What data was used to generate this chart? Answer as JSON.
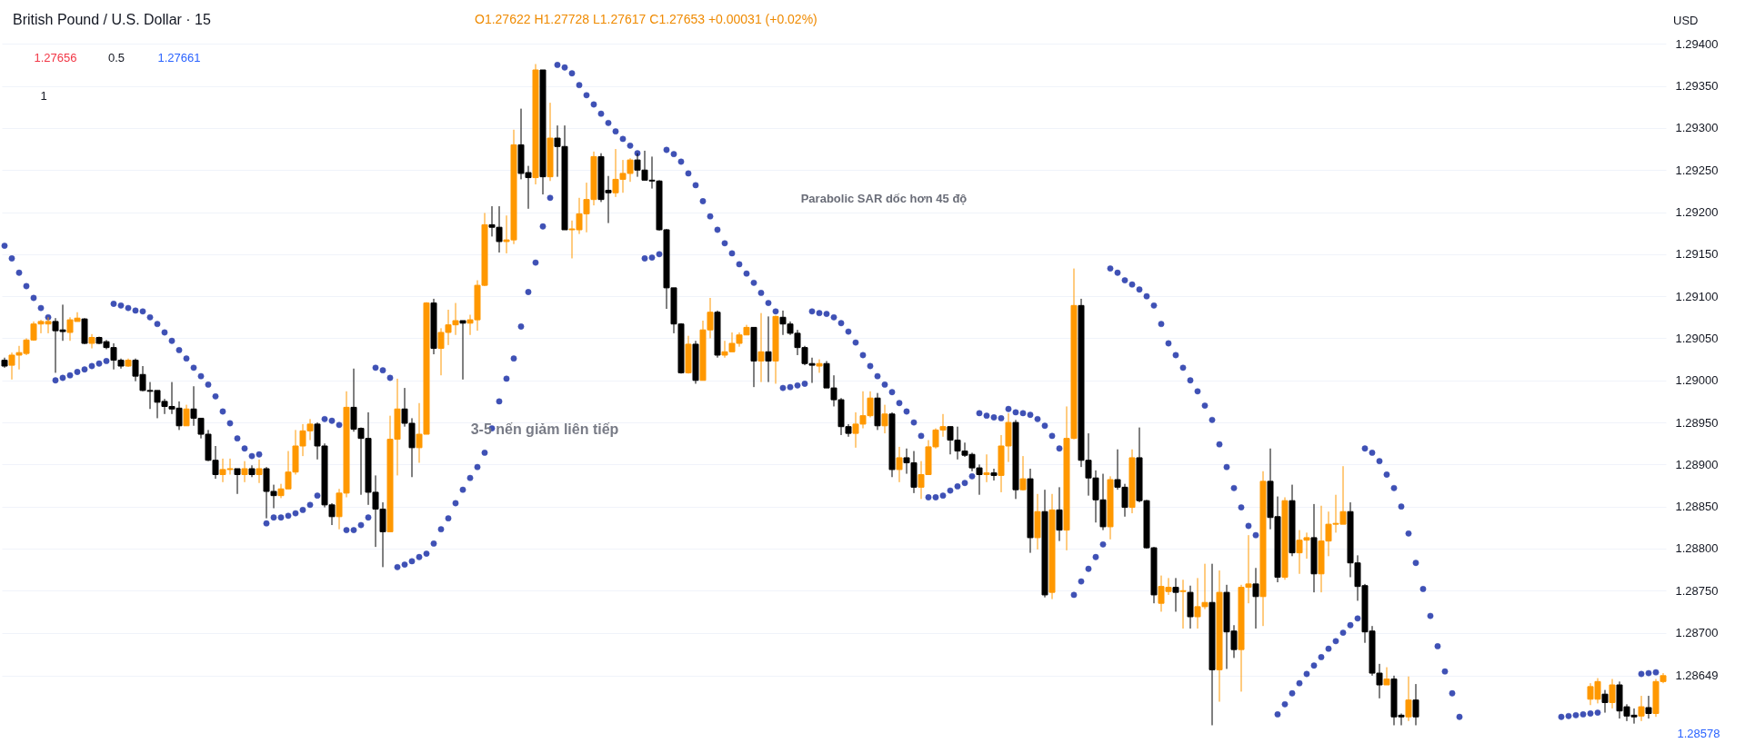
{
  "chart_data": {
    "type": "candlestick",
    "title": "British Pound / U.S. Dollar · 15",
    "subtitle": "O1.27622 H1.27728 L1.27617 C1.27653 +0.00031 (+0.02%)",
    "annotations": [
      "1.27656",
      "0.5",
      "1.27661",
      "1",
      "USD",
      "Parabolic SAR dốc hơn 45 độ",
      "3-5 nến giảm liên tiếp",
      "1.28578"
    ],
    "colors": [
      "#000000",
      "#ff9800",
      "#ff9800",
      "#ff9800",
      "#ff9800",
      "#ff9800",
      "#ff9800",
      "#000000",
      "#000000",
      "#ff9800",
      "#ff9800",
      "#000000",
      "#ff9800",
      "#000000",
      "#000000",
      "#000000",
      "#000000",
      "#ff9800",
      "#000000",
      "#000000",
      "#000000",
      "#000000",
      "#000000",
      "#000000",
      "#000000",
      "#ff9800",
      "#000000",
      "#000000",
      "#000000",
      "#000000",
      "#ff9800",
      "#ff9800",
      "#000000",
      "#ff9800",
      "#000000",
      "#ff9800",
      "#000000",
      "#000000",
      "#ff9800",
      "#ff9800",
      "#ff9800",
      "#ff9800",
      "#ff9800",
      "#000000",
      "#000000",
      "#000000",
      "#ff9800",
      "#ff9800",
      "#000000",
      "#000000",
      "#000000",
      "#000000",
      "#000000",
      "#ff9800",
      "#ff9800",
      "#000000",
      "#000000",
      "#ff9800",
      "#ff9800",
      "#000000",
      "#ff9800",
      "#ff9800",
      "#ff9800",
      "#000000",
      "#ff9800",
      "#ff9800",
      "#ff9800",
      "#000000",
      "#000000",
      "#ff9800",
      "#ff9800",
      "#000000",
      "#000000",
      "#ff9800",
      "#000000",
      "#ff9800",
      "#000000",
      "#000000",
      "#ff9800",
      "#ff9800",
      "#ff9800",
      "#ff9800",
      "#000000",
      "#000000",
      "#ff9800",
      "#ff9800",
      "#ff9800",
      "#000000",
      "#000000",
      "#000000",
      "#000000",
      "#000000",
      "#000000",
      "#000000",
      "#ff9800",
      "#000000",
      "#ff9800",
      "#ff9800",
      "#000000",
      "#ff9800",
      "#ff9800",
      "#ff9800",
      "#ff9800",
      "#000000",
      "#ff9800",
      "#000000",
      "#ff9800",
      "#000000",
      "#000000",
      "#000000",
      "#000000",
      "#000000",
      "#ff9800",
      "#000000",
      "#000000",
      "#000000",
      "#000000",
      "#ff9800",
      "#ff9800",
      "#ff9800",
      "#000000",
      "#ff9800",
      "#000000",
      "#ff9800",
      "#000000",
      "#000000",
      "#ff9800",
      "#ff9800",
      "#ff9800",
      "#ff9800",
      "#000000",
      "#000000",
      "#000000",
      "#000000",
      "#000000",
      "#ff9800",
      "#000000",
      "#ff9800",
      "#ff9800",
      "#000000",
      "#ff9800",
      "#000000",
      "#ff9800",
      "#000000",
      "#ff9800",
      "#000000",
      "#ff9800",
      "#ff9800",
      "#000000",
      "#000000",
      "#000000",
      "#000000",
      "#ff9800",
      "#000000",
      "#000000",
      "#ff9800",
      "#000000",
      "#000000",
      "#000000",
      "#ff9800",
      "#ff9800",
      "#000000",
      "#ff9800",
      "#000000",
      "#ff9800",
      "#ff9800",
      "#000000",
      "#ff9800",
      "#000000",
      "#000000",
      "#ff9800",
      "#ff9800",
      "#000000",
      "#ff9800",
      "#000000",
      "#000000",
      "#ff9800",
      "#000000",
      "#ff9800",
      "#ff9800",
      "#000000",
      "#ff9800",
      "#ff9800",
      "#ff9800",
      "#ff9800",
      "#000000",
      "#000000",
      "#000000",
      "#000000",
      "#000000",
      "#ff9800",
      "#000000",
      "#000000",
      "#ff9800",
      "#000000",
      null,
      null,
      null,
      null,
      null,
      null,
      null,
      null,
      null,
      null,
      null,
      null,
      null,
      null,
      null,
      null,
      null,
      null,
      null,
      null,
      null,
      null,
      null,
      "#ff9800",
      "#ff9800",
      "#000000",
      "#ff9800",
      "#000000",
      "#000000",
      "#000000",
      "#ff9800",
      "#000000",
      "#ff9800",
      "#ff9800"
    ],
    "tick_labels": "y",
    "categories": [
      null,
      null,
      null,
      null,
      null,
      null,
      null,
      null,
      null,
      null,
      null,
      null,
      null,
      null,
      null,
      null,
      null,
      null,
      null,
      null,
      null,
      null,
      null,
      null,
      null,
      null,
      null,
      null,
      null,
      null,
      null,
      null,
      null,
      null,
      null,
      null,
      null,
      null,
      null,
      null,
      null,
      null,
      null,
      null,
      null,
      null,
      null,
      null,
      null,
      null,
      null,
      null,
      null,
      null,
      null,
      null,
      null,
      null,
      null,
      null,
      null,
      null,
      null,
      null,
      null,
      null,
      null,
      null,
      null,
      null,
      null,
      null,
      null,
      null,
      null,
      null,
      null,
      null,
      null,
      null,
      null,
      null,
      null,
      null,
      null,
      null,
      null,
      null,
      null,
      null,
      null,
      null,
      null,
      null,
      null,
      null,
      null,
      null,
      null,
      null,
      null,
      null,
      null,
      null,
      null,
      null,
      null,
      null,
      null,
      null,
      null,
      null,
      null,
      null,
      null,
      null,
      null,
      null,
      null,
      null,
      null,
      null,
      null,
      null,
      null,
      null,
      null,
      null,
      null,
      null,
      null,
      null,
      null,
      null,
      null,
      null,
      null,
      null,
      null,
      null,
      null,
      null,
      null,
      null,
      null,
      null,
      null,
      null,
      null,
      null,
      null,
      null,
      null,
      null,
      null,
      null,
      null,
      null,
      null,
      null,
      null,
      null,
      null,
      null,
      null,
      null,
      null,
      null,
      null,
      null,
      null,
      null,
      null,
      null,
      null,
      null,
      null,
      null,
      null,
      null,
      null,
      null,
      null,
      null,
      null,
      null,
      null,
      null,
      null,
      null,
      null,
      null,
      null,
      null,
      null,
      null,
      null,
      null,
      null,
      null,
      null,
      null,
      null,
      null,
      null,
      null,
      null,
      null,
      null,
      null,
      null,
      null,
      null,
      null,
      null,
      null,
      null,
      null,
      null,
      null,
      null,
      null,
      null,
      null,
      null,
      null,
      null,
      null,
      null
    ],
    "ohlc": [
      [
        1.29024,
        1.29027,
        1.29015,
        1.29017
      ],
      [
        1.29018,
        1.29033,
        1.29001,
        1.2903
      ],
      [
        1.2903,
        1.29041,
        1.29013,
        1.29033
      ],
      [
        1.29032,
        1.2905,
        1.2903,
        1.29048
      ],
      [
        1.29048,
        1.2907,
        1.29047,
        1.29067
      ],
      [
        1.29067,
        1.29072,
        1.29056,
        1.2907
      ],
      [
        1.29067,
        1.29075,
        1.29056,
        1.2907
      ],
      [
        1.2907,
        1.29074,
        1.29009,
        1.29059
      ],
      [
        1.2906,
        1.2909,
        1.29047,
        1.29058
      ],
      [
        1.29057,
        1.29075,
        1.29047,
        1.29072
      ],
      [
        1.2907,
        1.29081,
        1.2907,
        1.29074
      ],
      [
        1.29073,
        1.29074,
        1.29043,
        1.29044
      ],
      [
        1.29044,
        1.29055,
        1.29038,
        1.29051
      ],
      [
        1.29051,
        1.29052,
        1.29043,
        1.29044
      ],
      [
        1.29046,
        1.29048,
        1.29037,
        1.29039
      ],
      [
        1.29039,
        1.29044,
        1.29013,
        1.29024
      ],
      [
        1.29024,
        1.29026,
        1.29014,
        1.29017
      ],
      [
        1.29017,
        1.29026,
        1.29016,
        1.29024
      ],
      [
        1.29024,
        1.29026,
        1.28999,
        1.29005
      ],
      [
        1.29007,
        1.29017,
        1.28987,
        1.28988
      ],
      [
        1.28988,
        1.28998,
        1.28966,
        1.28987
      ],
      [
        1.28988,
        1.28988,
        1.28955,
        1.28974
      ],
      [
        1.28975,
        1.28978,
        1.2896,
        1.28969
      ],
      [
        1.28969,
        1.28998,
        1.2896,
        1.28966
      ],
      [
        1.28967,
        1.28975,
        1.28941,
        1.28946
      ],
      [
        1.28946,
        1.28971,
        1.28946,
        1.28966
      ],
      [
        1.28966,
        1.28993,
        1.28946,
        1.28955
      ],
      [
        1.28955,
        1.28955,
        1.28931,
        1.28936
      ],
      [
        1.28936,
        1.28941,
        1.28904,
        1.28905
      ],
      [
        1.28905,
        1.28922,
        1.28883,
        1.28888
      ],
      [
        1.28888,
        1.28907,
        1.28879,
        1.28894
      ],
      [
        1.28894,
        1.28907,
        1.28888,
        1.28895
      ],
      [
        1.28895,
        1.28895,
        1.28865,
        1.28888
      ],
      [
        1.28888,
        1.28904,
        1.28879,
        1.28895
      ],
      [
        1.28895,
        1.28899,
        1.28885,
        1.28888
      ],
      [
        1.28888,
        1.28906,
        1.28878,
        1.28895
      ],
      [
        1.28895,
        1.28897,
        1.28836,
        1.28868
      ],
      [
        1.28868,
        1.28876,
        1.28848,
        1.28863
      ],
      [
        1.28863,
        1.28877,
        1.2886,
        1.28871
      ],
      [
        1.28871,
        1.28916,
        1.28871,
        1.28891
      ],
      [
        1.28891,
        1.28941,
        1.28888,
        1.28922
      ],
      [
        1.28922,
        1.28948,
        1.2891,
        1.2894
      ],
      [
        1.2894,
        1.28954,
        1.28929,
        1.28948
      ],
      [
        1.28948,
        1.2895,
        1.28906,
        1.28922
      ],
      [
        1.28922,
        1.28925,
        1.28849,
        1.28852
      ],
      [
        1.28852,
        1.28854,
        1.28828,
        1.28838
      ],
      [
        1.28838,
        1.28871,
        1.28823,
        1.28866
      ],
      [
        1.28866,
        1.28987,
        1.28861,
        1.28968
      ],
      [
        1.28968,
        1.29014,
        1.28939,
        1.28942
      ],
      [
        1.28943,
        1.28944,
        1.28864,
        1.28931
      ],
      [
        1.28931,
        1.28962,
        1.28852,
        1.28867
      ],
      [
        1.28867,
        1.28887,
        1.28802,
        1.28847
      ],
      [
        1.28847,
        1.28855,
        1.28778,
        1.2882
      ],
      [
        1.2882,
        1.28958,
        1.2882,
        1.2893
      ],
      [
        1.2893,
        1.29002,
        1.28887,
        1.28966
      ],
      [
        1.28966,
        1.28991,
        1.28945,
        1.28949
      ],
      [
        1.28949,
        1.28955,
        1.28885,
        1.2892
      ],
      [
        1.2892,
        1.28973,
        1.28902,
        1.28936
      ],
      [
        1.28936,
        1.29093,
        1.28936,
        1.29092
      ],
      [
        1.29092,
        1.29097,
        1.29031,
        1.29038
      ],
      [
        1.29038,
        1.29062,
        1.29006,
        1.29057
      ],
      [
        1.29057,
        1.29084,
        1.29042,
        1.29066
      ],
      [
        1.29066,
        1.29092,
        1.29054,
        1.29071
      ],
      [
        1.29071,
        1.29071,
        1.29001,
        1.29068
      ],
      [
        1.29068,
        1.29078,
        1.29054,
        1.29072
      ],
      [
        1.29072,
        1.29119,
        1.29059,
        1.29113
      ],
      [
        1.29113,
        1.29199,
        1.29112,
        1.29185
      ],
      [
        1.29185,
        1.29207,
        1.29171,
        1.29182
      ],
      [
        1.29182,
        1.29207,
        1.29152,
        1.29165
      ],
      [
        1.29165,
        1.29196,
        1.29151,
        1.29167
      ],
      [
        1.29167,
        1.29298,
        1.29162,
        1.2928
      ],
      [
        1.2928,
        1.29323,
        1.29239,
        1.29246
      ],
      [
        1.29247,
        1.29255,
        1.29204,
        1.29241
      ],
      [
        1.29241,
        1.29376,
        1.29233,
        1.29369
      ],
      [
        1.29369,
        1.29369,
        1.29221,
        1.29242
      ],
      [
        1.29242,
        1.2933,
        1.29237,
        1.29288
      ],
      [
        1.29288,
        1.29303,
        1.29242,
        1.29278
      ],
      [
        1.29278,
        1.29303,
        1.29179,
        1.29179
      ],
      [
        1.29179,
        1.2919,
        1.29145,
        1.2918
      ],
      [
        1.29179,
        1.29217,
        1.29174,
        1.29198
      ],
      [
        1.29198,
        1.29235,
        1.29176,
        1.29215
      ],
      [
        1.29215,
        1.29272,
        1.29208,
        1.29266
      ],
      [
        1.29266,
        1.2927,
        1.29212,
        1.29215
      ],
      [
        1.29226,
        1.29243,
        1.29187,
        1.29223
      ],
      [
        1.29223,
        1.29275,
        1.29218,
        1.29239
      ],
      [
        1.29239,
        1.29262,
        1.29223,
        1.29246
      ],
      [
        1.29246,
        1.29264,
        1.29236,
        1.29262
      ],
      [
        1.29262,
        1.2927,
        1.29242,
        1.2925
      ],
      [
        1.2925,
        1.29273,
        1.29238,
        1.29238
      ],
      [
        1.29238,
        1.29266,
        1.29228,
        1.29237
      ],
      [
        1.29237,
        1.29238,
        1.29178,
        1.29179
      ],
      [
        1.29179,
        1.2918,
        1.29085,
        1.2911
      ],
      [
        1.2911,
        1.2911,
        1.29056,
        1.29067
      ],
      [
        1.29067,
        1.29068,
        1.29008,
        1.29009
      ],
      [
        1.29009,
        1.29053,
        1.29008,
        1.29043
      ],
      [
        1.29043,
        1.29047,
        1.28996,
        1.29
      ],
      [
        1.29,
        1.29071,
        1.29,
        1.2906
      ],
      [
        1.2906,
        1.29098,
        1.2905,
        1.29081
      ],
      [
        1.29081,
        1.29083,
        1.29027,
        1.2903
      ],
      [
        1.2903,
        1.29047,
        1.29027,
        1.29034
      ],
      [
        1.29034,
        1.29057,
        1.29034,
        1.29044
      ],
      [
        1.29044,
        1.29057,
        1.2904,
        1.29054
      ],
      [
        1.29054,
        1.29066,
        1.29054,
        1.29063
      ],
      [
        1.29063,
        1.29063,
        1.28992,
        1.29023
      ],
      [
        1.29023,
        1.2908,
        1.28998,
        1.29034
      ],
      [
        1.29034,
        1.29076,
        1.28998,
        1.29023
      ],
      [
        1.29023,
        1.29077,
        1.28996,
        1.29076
      ],
      [
        1.29075,
        1.29083,
        1.29054,
        1.29067
      ],
      [
        1.29067,
        1.2907,
        1.29054,
        1.29056
      ],
      [
        1.29056,
        1.2906,
        1.2903,
        1.29039
      ],
      [
        1.29039,
        1.29041,
        1.29018,
        1.2902
      ],
      [
        1.2902,
        1.29027,
        1.28997,
        1.29018
      ],
      [
        1.29017,
        1.29025,
        1.29009,
        1.2902
      ],
      [
        1.2902,
        1.29023,
        1.28991,
        1.28991
      ],
      [
        1.28991,
        1.29006,
        1.28969,
        1.28977
      ],
      [
        1.28977,
        1.28979,
        1.28935,
        1.28945
      ],
      [
        1.28945,
        1.28948,
        1.28933,
        1.28937
      ],
      [
        1.28937,
        1.28962,
        1.2892,
        1.28948
      ],
      [
        1.28948,
        1.28987,
        1.28943,
        1.28958
      ],
      [
        1.28958,
        1.28987,
        1.28956,
        1.28979
      ],
      [
        1.28979,
        1.28985,
        1.28941,
        1.28946
      ],
      [
        1.28946,
        1.28971,
        1.28937,
        1.2896
      ],
      [
        1.2896,
        1.28962,
        1.28885,
        1.28894
      ],
      [
        1.28894,
        1.28921,
        1.28879,
        1.28908
      ],
      [
        1.28908,
        1.28919,
        1.28889,
        1.28902
      ],
      [
        1.28902,
        1.28916,
        1.28866,
        1.28873
      ],
      [
        1.28873,
        1.28904,
        1.28859,
        1.28888
      ],
      [
        1.28888,
        1.28929,
        1.28888,
        1.28921
      ],
      [
        1.28921,
        1.28943,
        1.28919,
        1.28941
      ],
      [
        1.28941,
        1.2896,
        1.28933,
        1.28945
      ],
      [
        1.28945,
        1.28945,
        1.28912,
        1.28929
      ],
      [
        1.28929,
        1.28945,
        1.28906,
        1.28916
      ],
      [
        1.28916,
        1.28926,
        1.28909,
        1.28911
      ],
      [
        1.28912,
        1.28914,
        1.28892,
        1.28896
      ],
      [
        1.28896,
        1.289,
        1.28864,
        1.28888
      ],
      [
        1.28888,
        1.28912,
        1.28879,
        1.2889
      ],
      [
        1.2889,
        1.28895,
        1.28881,
        1.28887
      ],
      [
        1.28887,
        1.28935,
        1.28867,
        1.28922
      ],
      [
        1.28922,
        1.28961,
        1.28903,
        1.2895
      ],
      [
        1.2895,
        1.28953,
        1.28859,
        1.2887
      ],
      [
        1.2887,
        1.2891,
        1.28869,
        1.28883
      ],
      [
        1.28883,
        1.28895,
        1.28795,
        1.28813
      ],
      [
        1.28813,
        1.28865,
        1.28799,
        1.28844
      ],
      [
        1.28844,
        1.2887,
        1.28742,
        1.28745
      ],
      [
        1.28748,
        1.28865,
        1.2874,
        1.28846
      ],
      [
        1.28846,
        1.28873,
        1.28809,
        1.28822
      ],
      [
        1.28822,
        1.28969,
        1.28798,
        1.28931
      ],
      [
        1.28931,
        1.29133,
        1.2893,
        1.29089
      ],
      [
        1.29089,
        1.29097,
        1.28897,
        1.28905
      ],
      [
        1.28905,
        1.28937,
        1.28863,
        1.28884
      ],
      [
        1.28884,
        1.28893,
        1.28831,
        1.28858
      ],
      [
        1.28858,
        1.28889,
        1.28822,
        1.28826
      ],
      [
        1.28826,
        1.28886,
        1.28811,
        1.28882
      ],
      [
        1.28882,
        1.28918,
        1.2887,
        1.28873
      ],
      [
        1.28873,
        1.28877,
        1.28838,
        1.28849
      ],
      [
        1.28849,
        1.28918,
        1.28842,
        1.28908
      ],
      [
        1.28908,
        1.28944,
        1.28855,
        1.28857
      ],
      [
        1.28857,
        1.28858,
        1.288,
        1.28801
      ],
      [
        1.28801,
        1.28802,
        1.28735,
        1.28745
      ],
      [
        1.28735,
        1.28768,
        1.28725,
        1.28755
      ],
      [
        1.28749,
        1.28765,
        1.28745,
        1.28754
      ],
      [
        1.28754,
        1.28765,
        1.28725,
        1.28748
      ],
      [
        1.28749,
        1.28763,
        1.28705,
        1.2875
      ],
      [
        1.28748,
        1.28756,
        1.28705,
        1.28719
      ],
      [
        1.28719,
        1.28765,
        1.28705,
        1.28731
      ],
      [
        1.28731,
        1.28782,
        1.28728,
        1.28736
      ],
      [
        1.28736,
        1.28782,
        1.2859,
        1.28656
      ],
      [
        1.28656,
        1.28774,
        1.28618,
        1.28748
      ],
      [
        1.28748,
        1.28757,
        1.28657,
        1.28701
      ],
      [
        1.28702,
        1.28709,
        1.2867,
        1.2868
      ],
      [
        1.2868,
        1.28757,
        1.2863,
        1.28754
      ],
      [
        1.28754,
        1.28816,
        1.28735,
        1.28758
      ],
      [
        1.28758,
        1.28777,
        1.28705,
        1.28743
      ],
      [
        1.28743,
        1.28892,
        1.28708,
        1.2888
      ],
      [
        1.2888,
        1.28919,
        1.28823,
        1.28837
      ],
      [
        1.28838,
        1.28862,
        1.2876,
        1.28766
      ],
      [
        1.28766,
        1.28861,
        1.28763,
        1.28857
      ],
      [
        1.28857,
        1.28876,
        1.28791,
        1.28795
      ],
      [
        1.28795,
        1.28822,
        1.2877,
        1.2881
      ],
      [
        1.2881,
        1.28819,
        1.28788,
        1.28813
      ],
      [
        1.28813,
        1.28853,
        1.28748,
        1.2877
      ],
      [
        1.2877,
        1.28851,
        1.28748,
        1.28809
      ],
      [
        1.28809,
        1.28844,
        1.28791,
        1.28829
      ],
      [
        1.28829,
        1.28864,
        1.28819,
        1.2883
      ],
      [
        1.28829,
        1.28898,
        1.28829,
        1.28844
      ],
      [
        1.28844,
        1.28855,
        1.28766,
        1.28783
      ],
      [
        1.28783,
        1.28792,
        1.28738,
        1.28755
      ],
      [
        1.28756,
        1.28758,
        1.28688,
        1.28701
      ],
      [
        1.28702,
        1.28708,
        1.28649,
        1.28652
      ],
      [
        1.28652,
        1.28663,
        1.28622,
        1.28638
      ],
      [
        1.28638,
        1.28659,
        1.28638,
        1.28645
      ],
      [
        1.28645,
        1.28649,
        1.2859,
        1.286
      ],
      [
        1.28602,
        1.28604,
        1.2859,
        1.286
      ],
      [
        1.286,
        1.28648,
        1.28595,
        1.2862
      ],
      [
        1.2862,
        1.28639,
        1.2859,
        1.286
      ],
      null,
      null,
      null,
      null,
      null,
      null,
      null,
      null,
      null,
      null,
      null,
      null,
      null,
      null,
      null,
      null,
      null,
      null,
      null,
      null,
      null,
      null,
      null,
      [
        1.28621,
        1.2864,
        1.28614,
        1.28636
      ],
      [
        1.28621,
        1.28646,
        1.28616,
        1.28642
      ],
      [
        1.28627,
        1.28632,
        1.28605,
        1.28617
      ],
      [
        1.28617,
        1.28645,
        1.2861,
        1.28638
      ],
      [
        1.28638,
        1.28642,
        1.28598,
        1.28607
      ],
      [
        1.28612,
        1.28615,
        1.28595,
        1.28601
      ],
      [
        1.28602,
        1.2861,
        1.28592,
        1.286
      ],
      [
        1.28601,
        1.28625,
        1.28595,
        1.28612
      ],
      [
        1.28611,
        1.28625,
        1.28598,
        1.28604
      ],
      [
        1.28604,
        1.28645,
        1.286,
        1.28642
      ],
      [
        1.28642,
        1.28652,
        1.2864,
        1.28649
      ]
    ],
    "series": [
      {
        "type": "scatter",
        "color": "#3f51b5",
        "values": [
          1.2916,
          1.29145,
          1.29128,
          1.29112,
          1.29098,
          1.29086,
          1.29075,
          1.29,
          1.29003,
          1.29006,
          1.2901,
          1.29013,
          1.29017,
          1.2902,
          1.29023,
          1.29091,
          1.29089,
          1.29086,
          1.29083,
          1.29082,
          1.29075,
          1.29067,
          1.29057,
          1.29047,
          1.29036,
          1.29026,
          1.29015,
          1.29005,
          1.28995,
          1.28981,
          1.28963,
          1.28949,
          1.28931,
          1.28919,
          1.2891,
          1.28912,
          1.2883,
          1.28837,
          1.28837,
          1.28839,
          1.28842,
          1.28846,
          1.28852,
          1.28863,
          1.28954,
          1.28952,
          1.28947,
          1.28822,
          1.28822,
          1.28828,
          1.28837,
          1.29015,
          1.29012,
          1.29003,
          1.28778,
          1.28781,
          1.28785,
          1.2879,
          1.28794,
          1.28806,
          1.28823,
          1.28836,
          1.28854,
          1.2887,
          1.28884,
          1.28897,
          1.28914,
          1.28943,
          1.28975,
          1.29002,
          1.29026,
          1.29064,
          1.29105,
          1.2914,
          1.29183,
          1.29217,
          1.29375,
          1.29372,
          1.29365,
          1.29351,
          1.29339,
          1.29328,
          1.29317,
          1.29306,
          1.29296,
          1.29287,
          1.29279,
          1.2927,
          1.29145,
          1.29146,
          1.2915,
          1.29274,
          1.29269,
          1.2926,
          1.29246,
          1.29232,
          1.29213,
          1.29195,
          1.29179,
          1.29163,
          1.29151,
          1.29138,
          1.29127,
          1.29116,
          1.29104,
          1.29092,
          1.29082,
          1.28991,
          1.28992,
          1.28994,
          1.28996,
          1.29082,
          1.2908,
          1.29079,
          1.29075,
          1.29068,
          1.29058,
          1.29045,
          1.2903,
          1.29017,
          1.29005,
          1.28995,
          1.28986,
          1.28973,
          1.28963,
          1.2895,
          1.28934,
          1.28861,
          1.28861,
          1.28863,
          1.28869,
          1.28874,
          1.28878,
          1.28886,
          1.28961,
          1.28958,
          1.28956,
          1.28955,
          1.28966,
          1.28962,
          1.28961,
          1.28959,
          1.28954,
          1.28946,
          1.28934,
          1.28919,
          null,
          1.28745,
          1.28761,
          1.28776,
          1.2879,
          1.28805,
          1.29133,
          1.29128,
          1.29119,
          1.29114,
          1.29108,
          1.291,
          1.29089,
          1.29067,
          1.29044,
          1.2903,
          1.29015,
          1.29,
          1.28987,
          1.2897,
          1.28953,
          1.28924,
          1.28897,
          1.28872,
          1.28849,
          1.28827,
          1.28816,
          null,
          null,
          1.28603,
          1.28615,
          1.28628,
          1.2864,
          1.28651,
          1.28661,
          1.28671,
          1.28681,
          1.2869,
          1.287,
          1.28709,
          1.28717,
          1.28919,
          1.28914,
          1.28904,
          1.28888,
          1.28872,
          1.2885,
          1.28818,
          1.28783,
          1.28752,
          1.2872,
          1.28684,
          1.28654,
          1.28628,
          1.286,
          null,
          null,
          null,
          null,
          null,
          null,
          null,
          null,
          null,
          null,
          null,
          null,
          null,
          1.286,
          1.28601,
          1.28602,
          1.28603,
          1.28604,
          1.28605,
          null,
          null,
          null,
          null,
          null,
          1.28651,
          1.28652,
          1.28653,
          null
        ]
      }
    ],
    "marker": "circle",
    "grid": "y",
    "ylim": [
      1.2857,
      1.2945
    ],
    "yticks": [
      {
        "value": 1.28649,
        "label": "1.28649"
      },
      {
        "value": 1.287,
        "label": "1.28700"
      },
      {
        "value": 1.2875,
        "label": "1.28750"
      },
      {
        "value": 1.288,
        "label": "1.28800"
      },
      {
        "value": 1.2885,
        "label": "1.28850"
      },
      {
        "value": 1.289,
        "label": "1.28900"
      },
      {
        "value": 1.2895,
        "label": "1.28950"
      },
      {
        "value": 1.29,
        "label": "1.29000"
      },
      {
        "value": 1.2905,
        "label": "1.29050"
      },
      {
        "value": 1.291,
        "label": "1.29100"
      },
      {
        "value": 1.2915,
        "label": "1.29150"
      },
      {
        "value": 1.292,
        "label": "1.29200"
      },
      {
        "value": 1.2925,
        "label": "1.29250"
      },
      {
        "value": 1.293,
        "label": "1.29300"
      },
      {
        "value": 1.2935,
        "label": "1.29350"
      },
      {
        "value": 1.294,
        "label": "1.29400"
      }
    ]
  }
}
